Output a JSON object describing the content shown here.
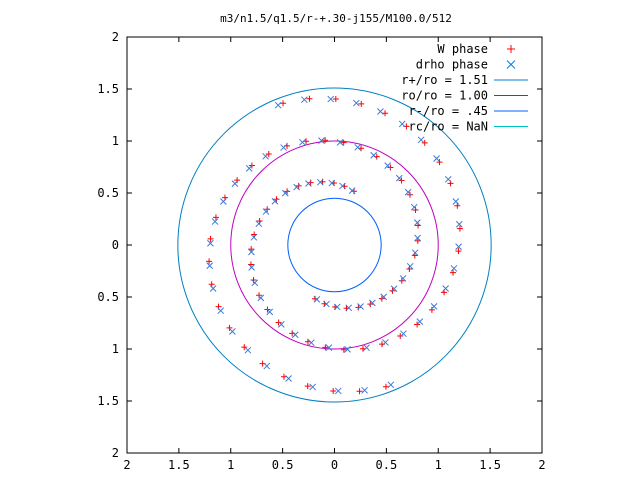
{
  "chart_data": {
    "type": "scatter",
    "title": "m3/n1.5/q1.5/r-+.30-j155/M100.0/512",
    "xlabel": "",
    "ylabel": "",
    "xlim": [
      -2,
      2
    ],
    "ylim": [
      -2,
      2
    ],
    "x_tick_labels": [
      "2",
      "1.5",
      "1",
      "0.5",
      "0",
      "0.5",
      "1",
      "1.5",
      "2"
    ],
    "y_tick_labels": [
      "2",
      "1.5",
      "1",
      "0.5",
      "0",
      "0.5",
      "1",
      "1.5",
      "2"
    ],
    "grid": false,
    "legend_position": "top-right",
    "legend": [
      {
        "label": "W phase",
        "marker": "plus",
        "color": "#ff0000"
      },
      {
        "label": "drho phase",
        "marker": "cross",
        "color": "#0080ff"
      },
      {
        "label": "r+/ro = 1.51",
        "marker": "line",
        "color": "#0080c0"
      },
      {
        "label": "ro/ro = 1.00",
        "marker": "line",
        "color": "#c000c0"
      },
      {
        "label": "r-/ro = .45",
        "marker": "line",
        "color": "#0060ff"
      },
      {
        "label": "rc/ro = NaN",
        "marker": "line",
        "color": "#00c0c0"
      }
    ],
    "circles": [
      {
        "name": "r+/ro = 1.51",
        "radius": 1.51,
        "color": "#0080c0"
      },
      {
        "name": "ro/ro = 1.00",
        "radius": 1.0,
        "color": "#c000c0"
      },
      {
        "name": "r-/ro = .45",
        "radius": 0.45,
        "color": "#0060ff"
      }
    ],
    "series": [
      {
        "name": "W phase",
        "color": "#ff0000",
        "marker": "plus",
        "arms": [
          {
            "r_start": 0.55,
            "r_end": 1.45,
            "theta_start_deg": 70,
            "theta_end_deg": 470,
            "count": 40
          },
          {
            "r_start": 0.55,
            "r_end": 1.45,
            "theta_start_deg": 250,
            "theta_end_deg": 650,
            "count": 40
          }
        ]
      },
      {
        "name": "drho phase",
        "color": "#3c78d8",
        "marker": "cross",
        "arms": [
          {
            "r_start": 0.55,
            "r_end": 1.45,
            "theta_start_deg": 72,
            "theta_end_deg": 472,
            "count": 40
          },
          {
            "r_start": 0.55,
            "r_end": 1.45,
            "theta_start_deg": 252,
            "theta_end_deg": 652,
            "count": 40
          }
        ]
      }
    ]
  }
}
